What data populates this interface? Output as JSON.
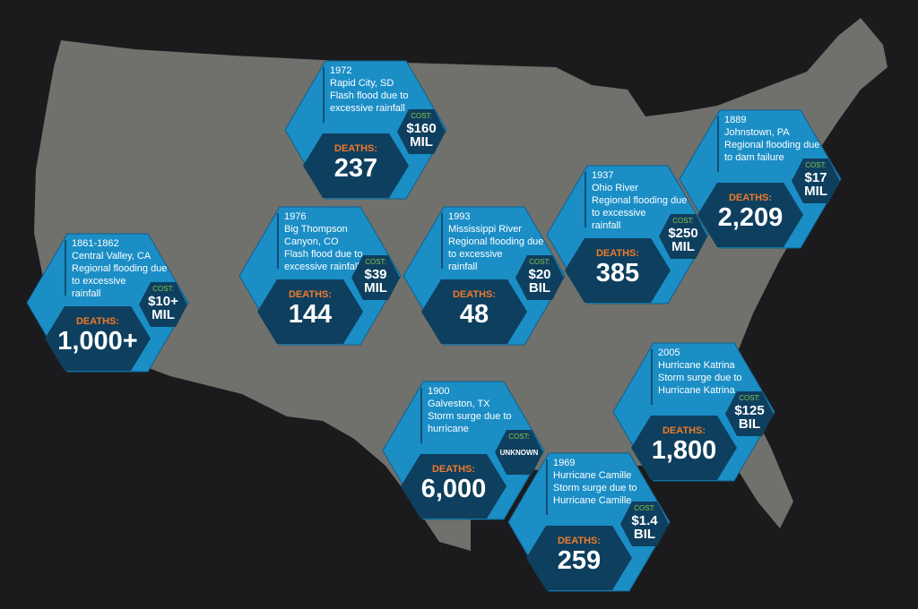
{
  "labels": {
    "cost": "COST:",
    "deaths": "DEATHS:"
  },
  "events": [
    {
      "year": "1972",
      "lines": [
        "Rapid City, SD",
        "Flash flood due to",
        "excessive rainfall"
      ],
      "cost": [
        "$160",
        "MIL"
      ],
      "deaths": "237"
    },
    {
      "year": "1889",
      "lines": [
        "Johnstown, PA",
        "Regional flooding due",
        "to dam failure"
      ],
      "cost": [
        "$17",
        "MIL"
      ],
      "deaths": "2,209"
    },
    {
      "year": "1937",
      "lines": [
        "Ohio River",
        "Regional flooding due",
        "to excessive",
        "rainfall"
      ],
      "cost": [
        "$250",
        "MIL"
      ],
      "deaths": "385"
    },
    {
      "year": "1976",
      "lines": [
        "Big Thompson",
        "Canyon, CO",
        "Flash flood due to",
        "excessive rainfall"
      ],
      "cost": [
        "$39",
        "MIL"
      ],
      "deaths": "144"
    },
    {
      "year": "1993",
      "lines": [
        "Mississippi River",
        "Regional flooding due",
        "to excessive",
        "rainfall"
      ],
      "cost": [
        "$20",
        "BIL"
      ],
      "deaths": "48"
    },
    {
      "year": "1861-1862",
      "lines": [
        "Central Valley, CA",
        "Regional flooding due",
        "to excessive",
        "rainfall"
      ],
      "cost": [
        "$10+",
        "MIL"
      ],
      "deaths": "1,000+"
    },
    {
      "year": "2005",
      "lines": [
        "Hurricane Katrina",
        "Storm surge due to",
        "Hurricane Katrina"
      ],
      "cost": [
        "$125",
        "BIL"
      ],
      "deaths": "1,800"
    },
    {
      "year": "1900",
      "lines": [
        "Galveston, TX",
        "Storm surge due to",
        "hurricane"
      ],
      "cost": [
        "UNKNOWN"
      ],
      "deaths": "6,000"
    },
    {
      "year": "1969",
      "lines": [
        "Hurricane Camille",
        "Storm surge due to",
        "Hurricane Camille"
      ],
      "cost": [
        "$1.4",
        "BIL"
      ],
      "deaths": "259"
    }
  ]
}
